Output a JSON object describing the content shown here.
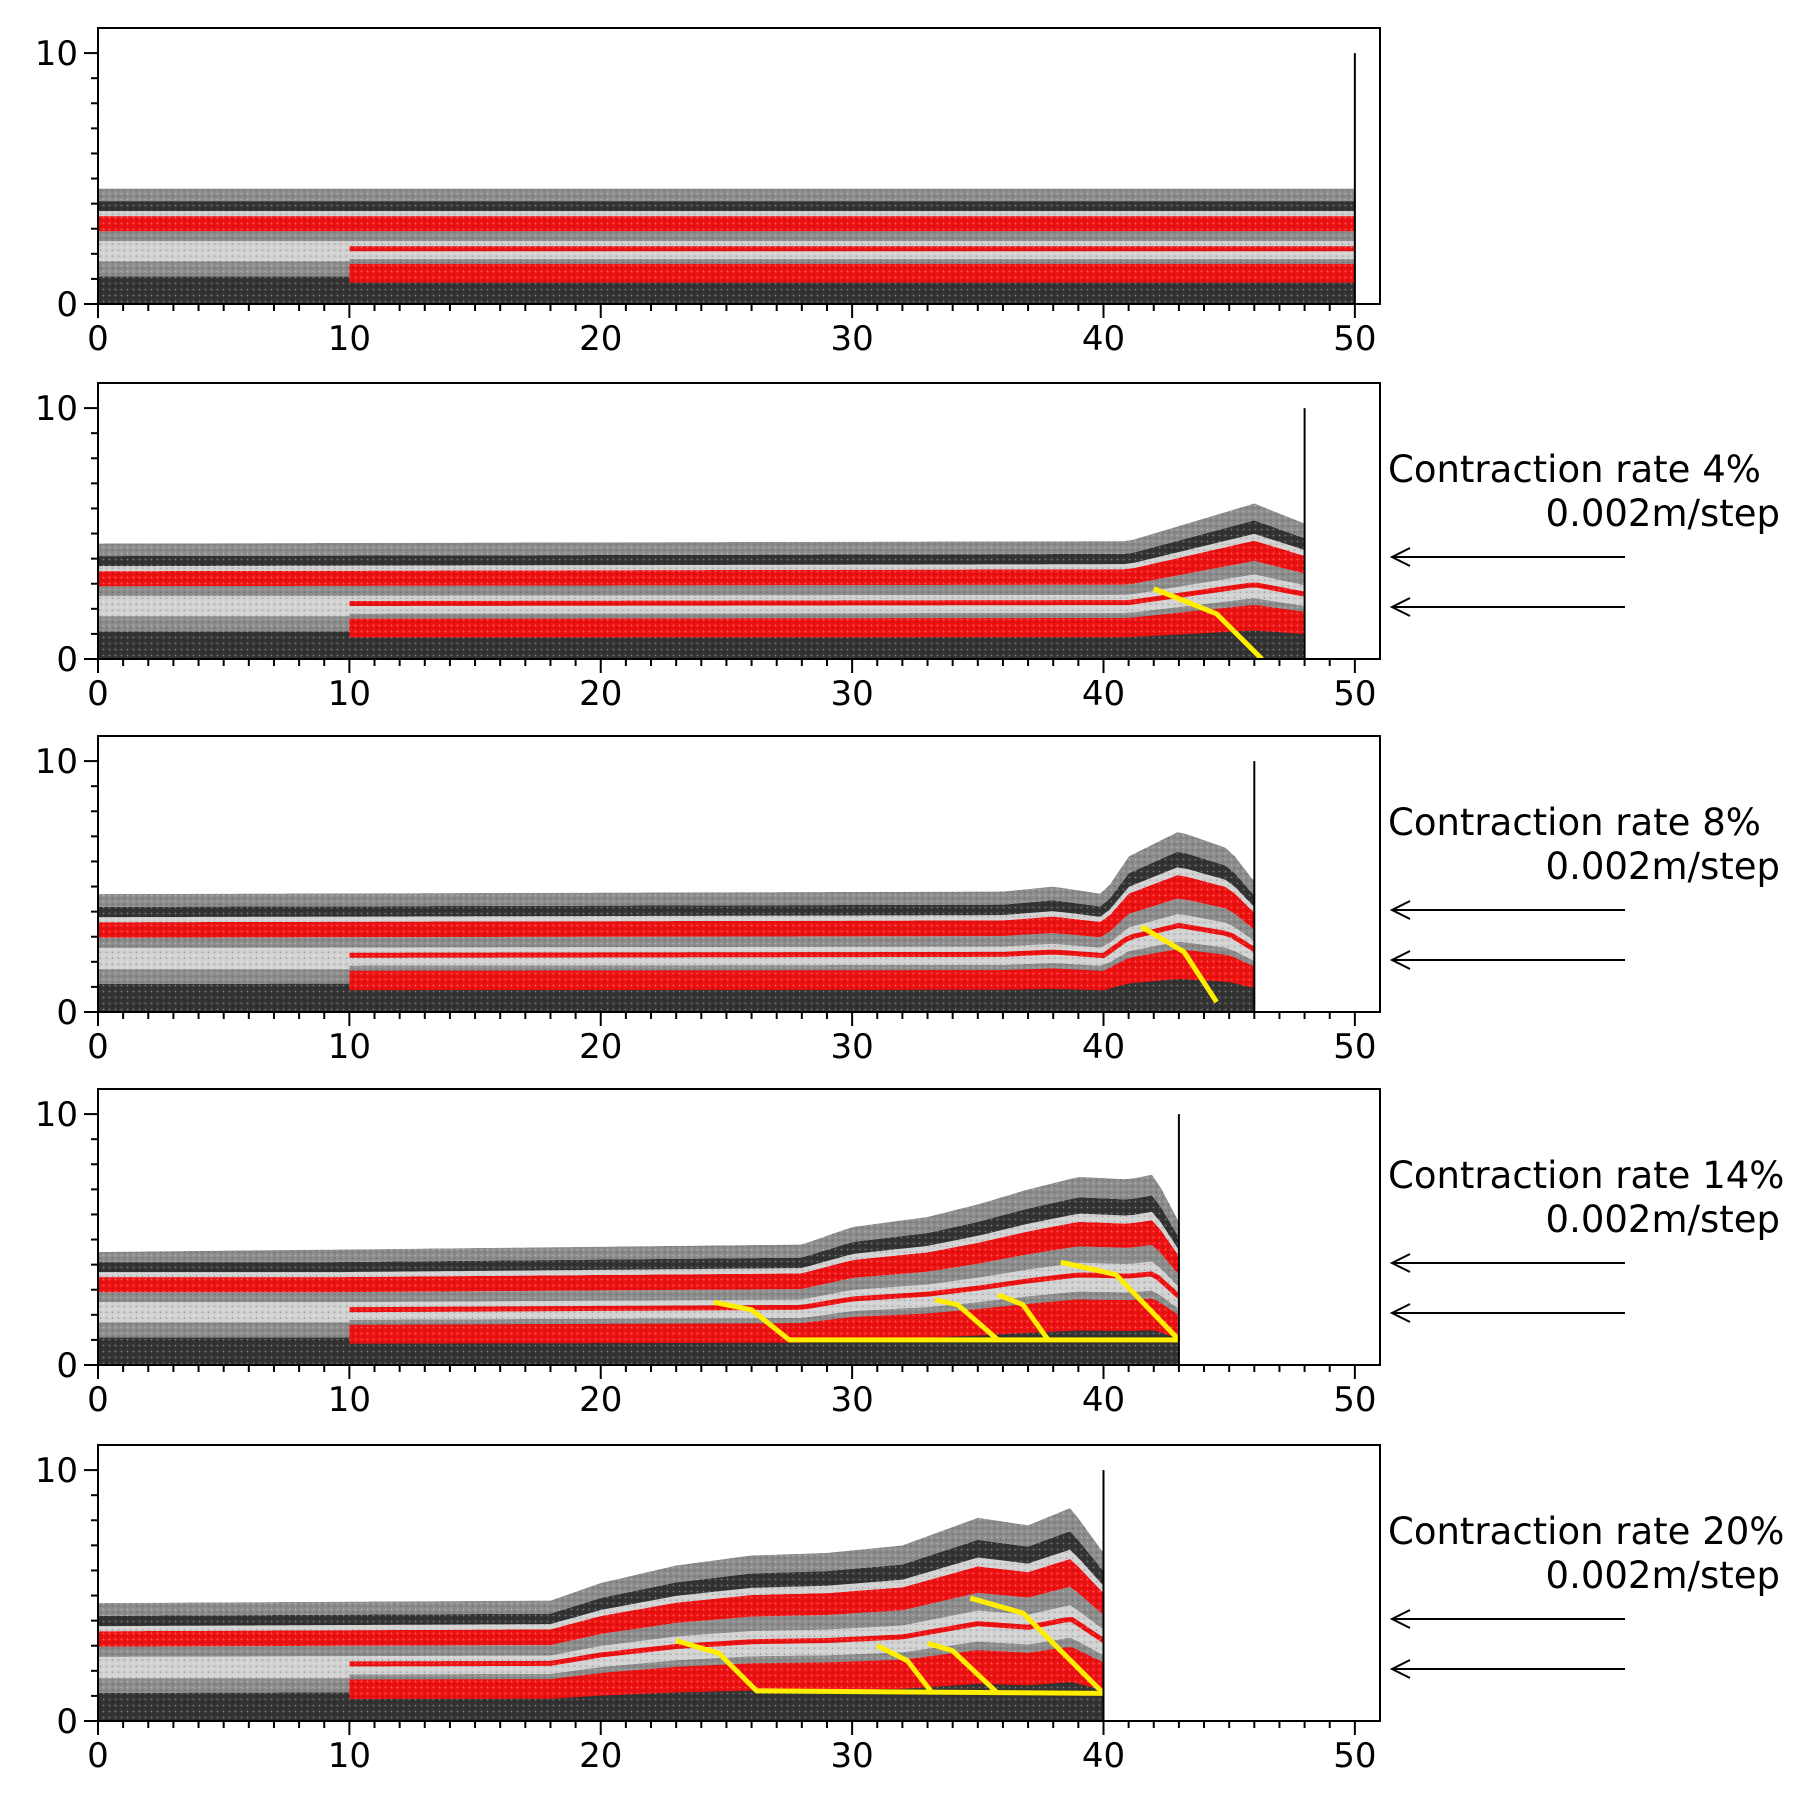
{
  "figure": {
    "x_ticks": [
      "0",
      "10",
      "20",
      "30",
      "40",
      "50"
    ],
    "y_ticks": [
      "0",
      "10"
    ]
  },
  "colors": {
    "red_layer": "#ee1111",
    "dark_layer": "#333333",
    "mid_gray": "#8c8c8c",
    "light_gray": "#d2d2d2",
    "fault": "#ffee00",
    "wall": "#000000"
  },
  "panels": [
    {
      "label": "",
      "rate": "",
      "wall_x": 50,
      "surface": [
        [
          0,
          4.4
        ],
        [
          50,
          4.4
        ]
      ],
      "faults": []
    },
    {
      "label": "Contraction rate 4%",
      "rate": "0.002m/step",
      "wall_x": 48,
      "surface": [
        [
          0,
          4.4
        ],
        [
          41,
          4.5
        ],
        [
          44,
          5.4
        ],
        [
          46,
          6.0
        ],
        [
          48,
          5.2
        ]
      ],
      "faults": [
        [
          [
            42,
            2.8
          ],
          [
            44.5,
            1.8
          ],
          [
            46.3,
            0
          ]
        ]
      ]
    },
    {
      "label": "Contraction rate 8%",
      "rate": "0.002m/step",
      "wall_x": 46,
      "surface": [
        [
          0,
          4.5
        ],
        [
          36,
          4.6
        ],
        [
          38,
          4.8
        ],
        [
          40,
          4.5
        ],
        [
          41,
          6.0
        ],
        [
          43,
          7.0
        ],
        [
          45,
          6.3
        ],
        [
          46,
          5.0
        ]
      ],
      "faults": [
        [
          [
            41.5,
            3.4
          ],
          [
            43.2,
            2.4
          ],
          [
            44.5,
            0.4
          ]
        ]
      ]
    },
    {
      "label": "Contraction rate 14%",
      "rate": "0.002m/step",
      "wall_x": 43,
      "surface": [
        [
          0,
          4.3
        ],
        [
          28,
          4.6
        ],
        [
          30,
          5.3
        ],
        [
          33,
          5.7
        ],
        [
          35,
          6.2
        ],
        [
          37,
          6.8
        ],
        [
          39,
          7.3
        ],
        [
          41,
          7.2
        ],
        [
          42,
          7.4
        ],
        [
          43,
          5.5
        ]
      ],
      "faults": [
        [
          [
            24.5,
            2.5
          ],
          [
            26,
            2.2
          ],
          [
            27.5,
            1.0
          ],
          [
            43,
            1.0
          ]
        ],
        [
          [
            33.3,
            2.6
          ],
          [
            34.2,
            2.4
          ],
          [
            35.8,
            1.0
          ]
        ],
        [
          [
            35.8,
            2.8
          ],
          [
            36.8,
            2.4
          ],
          [
            37.8,
            1.0
          ]
        ],
        [
          [
            38.3,
            4.1
          ],
          [
            40.5,
            3.6
          ],
          [
            43,
            1.0
          ]
        ]
      ]
    },
    {
      "label": "Contraction rate 20%",
      "rate": "0.002m/step",
      "wall_x": 40,
      "surface": [
        [
          0,
          4.5
        ],
        [
          18,
          4.6
        ],
        [
          20,
          5.3
        ],
        [
          23,
          6.0
        ],
        [
          26,
          6.4
        ],
        [
          29,
          6.5
        ],
        [
          32,
          6.8
        ],
        [
          35,
          7.9
        ],
        [
          37,
          7.6
        ],
        [
          38.7,
          8.3
        ],
        [
          40,
          6.5
        ]
      ],
      "faults": [
        [
          [
            23,
            3.2
          ],
          [
            24.7,
            2.7
          ],
          [
            26.2,
            1.2
          ],
          [
            40,
            1.1
          ]
        ],
        [
          [
            31,
            3.0
          ],
          [
            32.2,
            2.4
          ],
          [
            33.2,
            1.1
          ]
        ],
        [
          [
            33,
            3.1
          ],
          [
            34,
            2.8
          ],
          [
            35.8,
            1.1
          ]
        ],
        [
          [
            34.7,
            4.9
          ],
          [
            36.8,
            4.3
          ],
          [
            40,
            1.1
          ]
        ]
      ]
    }
  ]
}
